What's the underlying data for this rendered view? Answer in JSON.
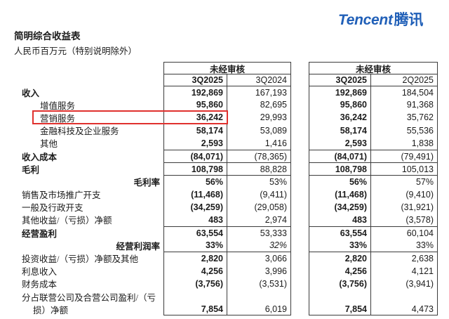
{
  "header": {
    "logo_en": "Tencent",
    "logo_cn": "腾讯",
    "title": "简明综合收益表",
    "subtitle": "人民币百万元（特别说明除外）"
  },
  "tables": [
    {
      "header": "未经审核",
      "col1": "3Q2025",
      "col2": "3Q2024"
    },
    {
      "header": "未经审核",
      "col1": "3Q2025",
      "col2": "2Q2025"
    }
  ],
  "colors": {
    "logo_blue": "#2160b8",
    "highlight_red": "#e0312e",
    "border": "#3c3c3c"
  },
  "highlight": {
    "row_label": "营销服务",
    "highlighted_value": "36,242"
  },
  "statement": {
    "rows": [
      {
        "label": "收入",
        "bold": true,
        "ind": 0,
        "sec": true,
        "v": [
          "192,869",
          "167,193",
          "192,869",
          "184,504"
        ]
      },
      {
        "label": "增值服务",
        "ind": 1,
        "v": [
          "95,860",
          "82,695",
          "95,860",
          "91,368"
        ]
      },
      {
        "label": "营销服务",
        "ind": 1,
        "highlight": true,
        "v": [
          "36,242",
          "29,993",
          "36,242",
          "35,762"
        ]
      },
      {
        "label": "金融科技及企业服务",
        "ind": 1,
        "v": [
          "58,174",
          "53,089",
          "58,174",
          "55,536"
        ]
      },
      {
        "label": "其他",
        "ind": 1,
        "v": [
          "2,593",
          "1,416",
          "2,593",
          "1,838"
        ]
      },
      {
        "label": "收入成本",
        "bold": true,
        "ind": 0,
        "sec": true,
        "v": [
          "(84,071)",
          "(78,365)",
          "(84,071)",
          "(79,491)"
        ]
      },
      {
        "label": "毛利",
        "bold": true,
        "ind": 0,
        "sec": true,
        "v": [
          "108,798",
          "88,828",
          "108,798",
          "105,013"
        ]
      },
      {
        "label": "毛利率",
        "right": true,
        "sec": true,
        "v": [
          "56%",
          "53%",
          "56%",
          "57%"
        ]
      },
      {
        "label": "销售及市场推广开支",
        "ind": 0,
        "v": [
          "(11,468)",
          "(9,411)",
          "(11,468)",
          "(9,410)"
        ]
      },
      {
        "label": "一般及行政开支",
        "ind": 0,
        "v": [
          "(34,259)",
          "(29,058)",
          "(34,259)",
          "(31,921)"
        ]
      },
      {
        "label": "其他收益/（亏损）净额",
        "ind": 0,
        "v": [
          "483",
          "2,974",
          "483",
          "(3,578)"
        ]
      },
      {
        "label": "经营盈利",
        "bold": true,
        "ind": 0,
        "sec": true,
        "v": [
          "63,554",
          "53,333",
          "63,554",
          "60,104"
        ]
      },
      {
        "label": "经营利润率",
        "right": true,
        "italic2": true,
        "v": [
          "33%",
          "32%",
          "33%",
          "33%"
        ]
      },
      {
        "label": "投资收益/（亏损）净额及其他",
        "ind": 0,
        "sec": true,
        "v": [
          "2,820",
          "3,066",
          "2,820",
          "2,638"
        ]
      },
      {
        "label": "利息收入",
        "ind": 0,
        "v": [
          "4,256",
          "3,996",
          "4,256",
          "4,121"
        ]
      },
      {
        "label": "财务成本",
        "ind": 0,
        "v": [
          "(3,756)",
          "(3,531)",
          "(3,756)",
          "(3,941)"
        ]
      },
      {
        "label": "分占联营公司及合营公司盈利/（亏",
        "ind": 0,
        "v": [
          "",
          "",
          "",
          ""
        ]
      },
      {
        "label": "损）净额",
        "ind": 2,
        "v": [
          "7,854",
          "6,019",
          "7,854",
          "4,473"
        ]
      }
    ]
  }
}
